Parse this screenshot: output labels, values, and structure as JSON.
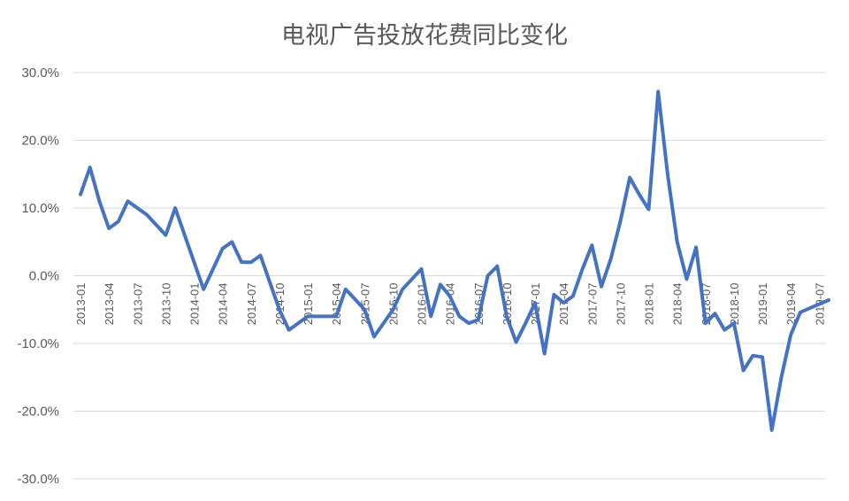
{
  "chart_data": {
    "type": "line",
    "title": "电视广告投放花费同比变化",
    "xlabel": "",
    "ylabel": "",
    "ylim": [
      -30,
      30
    ],
    "yticks": [
      "30.0%",
      "20.0%",
      "10.0%",
      "0.0%",
      "-10.0%",
      "-20.0%",
      "-30.0%"
    ],
    "ytick_values": [
      30,
      20,
      10,
      0,
      -10,
      -20,
      -30
    ],
    "grid": true,
    "legend": "none",
    "line_color": "#4472C4",
    "x": [
      "2013-01",
      "2013-02",
      "2013-03",
      "2013-04",
      "2013-05",
      "2013-06",
      "2013-07",
      "2013-08",
      "2013-09",
      "2013-10",
      "2013-11",
      "2013-12",
      "2014-01",
      "2014-02",
      "2014-03",
      "2014-04",
      "2014-05",
      "2014-06",
      "2014-07",
      "2014-08",
      "2014-09",
      "2014-10",
      "2014-11",
      "2014-12",
      "2015-01",
      "2015-02",
      "2015-03",
      "2015-04",
      "2015-05",
      "2015-06",
      "2015-07",
      "2015-08",
      "2015-09",
      "2015-10",
      "2015-11",
      "2015-12",
      "2016-01",
      "2016-02",
      "2016-03",
      "2016-04",
      "2016-05",
      "2016-06",
      "2016-07",
      "2016-08",
      "2016-09",
      "2016-10",
      "2016-11",
      "2016-12",
      "2017-01",
      "2017-02",
      "2017-03",
      "2017-04",
      "2017-05",
      "2017-06",
      "2017-07",
      "2017-08",
      "2017-09",
      "2017-10",
      "2017-11",
      "2017-12",
      "2018-01",
      "2018-02",
      "2018-03",
      "2018-04",
      "2018-05",
      "2018-06",
      "2018-07",
      "2018-08",
      "2018-09",
      "2018-10",
      "2018-11",
      "2018-12",
      "2019-01",
      "2019-02",
      "2019-03",
      "2019-04",
      "2019-05",
      "2019-06",
      "2019-07",
      "2019-08"
    ],
    "xtick_labels": [
      "2013-01",
      "2013-04",
      "2013-07",
      "2013-10",
      "2014-01",
      "2014-04",
      "2014-07",
      "2014-10",
      "2015-01",
      "2015-04",
      "2015-07",
      "2015-10",
      "2016-01",
      "2016-04",
      "2016-07",
      "2016-10",
      "2017-01",
      "2017-04",
      "2017-07",
      "2017-10",
      "2018-01",
      "2018-04",
      "2018-07",
      "2018-10",
      "2019-01",
      "2019-04",
      "2019-07"
    ],
    "series": [
      {
        "name": "",
        "values": [
          12,
          16,
          11,
          7,
          8,
          11,
          10,
          9,
          7.5,
          6,
          10,
          6,
          2,
          -2,
          1,
          4,
          5,
          2,
          2,
          3,
          -1,
          -5,
          -8,
          -7,
          -6,
          -6,
          -6,
          -6,
          -2,
          -3.5,
          -5,
          -9,
          -7,
          -5,
          -2,
          -0.5,
          1,
          -6,
          -1.3,
          -3,
          -6,
          -7,
          -6.5,
          0,
          1.4,
          -6,
          -9.8,
          -7,
          -4,
          -11.5,
          -2.8,
          -4,
          -3,
          1,
          4.5,
          -1.6,
          2.5,
          8,
          14.5,
          12,
          9.8,
          27.2,
          15,
          5,
          -0.5,
          4.2,
          -7,
          -5.6,
          -8,
          -7,
          -14,
          -11.8,
          -12,
          -22.8,
          -15,
          -8.7,
          -5.4,
          -4.8,
          -4.2,
          -3.6
        ]
      }
    ]
  }
}
